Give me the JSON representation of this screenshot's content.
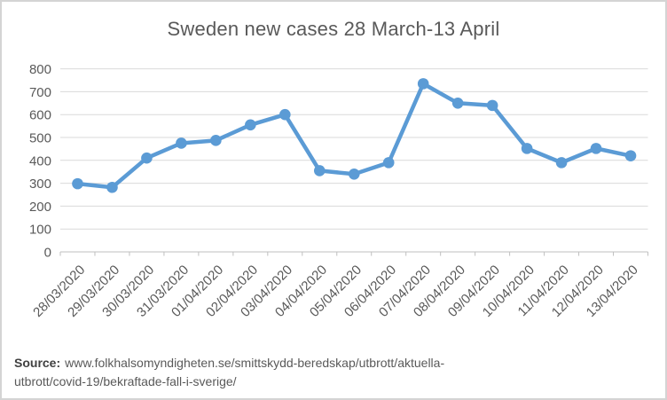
{
  "chart_data": {
    "type": "line",
    "title": "Sweden new cases 28 March-13 April",
    "categories": [
      "28/03/2020",
      "29/03/2020",
      "30/03/2020",
      "31/03/2020",
      "01/04/2020",
      "02/04/2020",
      "03/04/2020",
      "04/04/2020",
      "05/04/2020",
      "06/04/2020",
      "07/04/2020",
      "08/04/2020",
      "09/04/2020",
      "10/04/2020",
      "11/04/2020",
      "12/04/2020",
      "13/04/2020"
    ],
    "values": [
      298,
      282,
      410,
      475,
      487,
      555,
      600,
      355,
      340,
      390,
      735,
      650,
      640,
      452,
      390,
      452,
      420
    ],
    "xlabel": "",
    "ylabel": "",
    "ylim": [
      0,
      800
    ],
    "ytick_step": 100,
    "ytick_labels": [
      "0",
      "100",
      "200",
      "300",
      "400",
      "500",
      "600",
      "700",
      "800"
    ],
    "grid": true,
    "legend": false,
    "marker": "circle",
    "colors": {
      "line": "#5b9bd5",
      "marker": "#5b9bd5",
      "grid": "#d9d9d9",
      "axis": "#bfbfbf",
      "text": "#595959",
      "title": "#595959"
    }
  },
  "source": {
    "label": "Source:",
    "line1": "www.folkhalsomyndigheten.se/smittskydd-beredskap/utbrott/aktuella-",
    "line2": "utbrott/covid-19/bekraftade-fall-i-sverige/"
  }
}
